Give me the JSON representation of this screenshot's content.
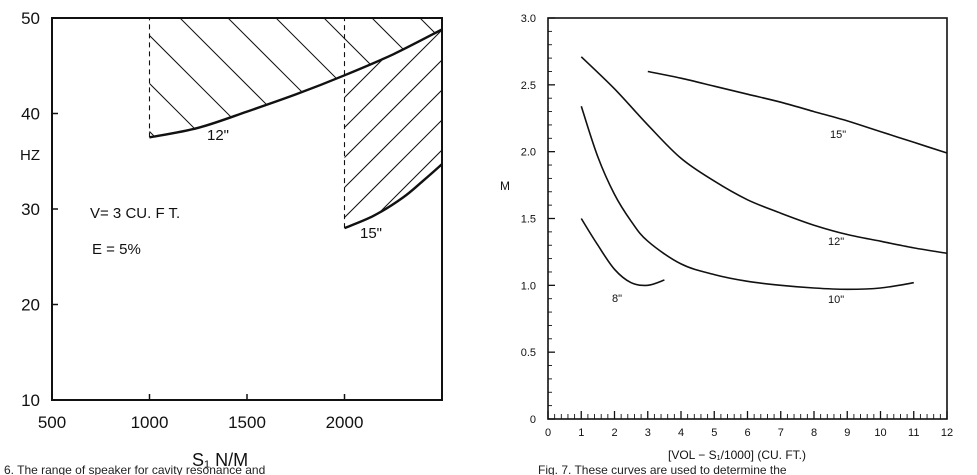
{
  "chart_data": [
    {
      "type": "area",
      "xlabel": "S₁ N/M",
      "ylabel": "HZ",
      "xlim": [
        500,
        2500
      ],
      "ylim": [
        10,
        50
      ],
      "x_ticks": [
        "500",
        "1000",
        "1500",
        "2000"
      ],
      "y_ticks": [
        "10",
        "20",
        "30",
        "40",
        "50"
      ],
      "grid": false,
      "annotations": [
        "V= 3 CU. F T.",
        "E = 5%"
      ],
      "series": [
        {
          "name": "12\"",
          "x": [
            1000,
            1250,
            1500,
            1750,
            2000,
            2250,
            2500
          ],
          "y": [
            37.5,
            38.5,
            40.2,
            42.0,
            44.0,
            46.2,
            48.8
          ]
        },
        {
          "name": "15\"",
          "x": [
            2000,
            2150,
            2300,
            2400,
            2500
          ],
          "y": [
            28.0,
            29.3,
            31.2,
            32.9,
            34.7
          ]
        }
      ],
      "boundaries": [
        {
          "x": 1000,
          "y_range": [
            37.5,
            50
          ],
          "style": "dashed"
        },
        {
          "x": 2000,
          "y_range": [
            28.0,
            50
          ],
          "style": "dashed"
        }
      ],
      "y_upper": 50
    },
    {
      "type": "line",
      "xlabel": "[VOL − S₁/1000]  (CU. FT.)",
      "ylabel": "M",
      "xlim": [
        0,
        12
      ],
      "ylim": [
        0,
        3.0
      ],
      "x_ticks": [
        "0",
        "1",
        "2",
        "3",
        "4",
        "5",
        "6",
        "7",
        "8",
        "9",
        "10",
        "11",
        "12"
      ],
      "y_ticks": [
        "0",
        "0.5",
        "1.0",
        "1.5",
        "2.0",
        "2.5",
        "3.0"
      ],
      "grid": false,
      "series": [
        {
          "name": "15\"",
          "x": [
            3,
            4,
            5,
            6,
            7,
            8,
            9,
            10,
            11,
            12
          ],
          "y": [
            2.6,
            2.55,
            2.49,
            2.43,
            2.37,
            2.3,
            2.23,
            2.15,
            2.07,
            1.99
          ]
        },
        {
          "name": "12\"",
          "x": [
            1,
            2,
            3,
            4,
            5,
            6,
            7,
            8,
            9,
            10,
            11,
            12
          ],
          "y": [
            2.71,
            2.47,
            2.2,
            1.95,
            1.78,
            1.64,
            1.54,
            1.45,
            1.38,
            1.33,
            1.28,
            1.24
          ]
        },
        {
          "name": "10\"",
          "x": [
            1,
            1.5,
            2,
            2.5,
            3,
            4,
            5,
            6,
            7,
            8,
            9,
            10,
            11
          ],
          "y": [
            2.34,
            1.96,
            1.68,
            1.48,
            1.33,
            1.16,
            1.08,
            1.03,
            1.0,
            0.98,
            0.97,
            0.98,
            1.02
          ]
        },
        {
          "name": "8\"",
          "x": [
            1,
            1.5,
            2,
            2.5,
            3,
            3.5
          ],
          "y": [
            1.5,
            1.3,
            1.12,
            1.02,
            1.0,
            1.04
          ]
        }
      ]
    }
  ],
  "captions": {
    "left": "6.  The range of speaker for cavity resonance and",
    "right": "Fig. 7.  These curves are used to determine the"
  }
}
